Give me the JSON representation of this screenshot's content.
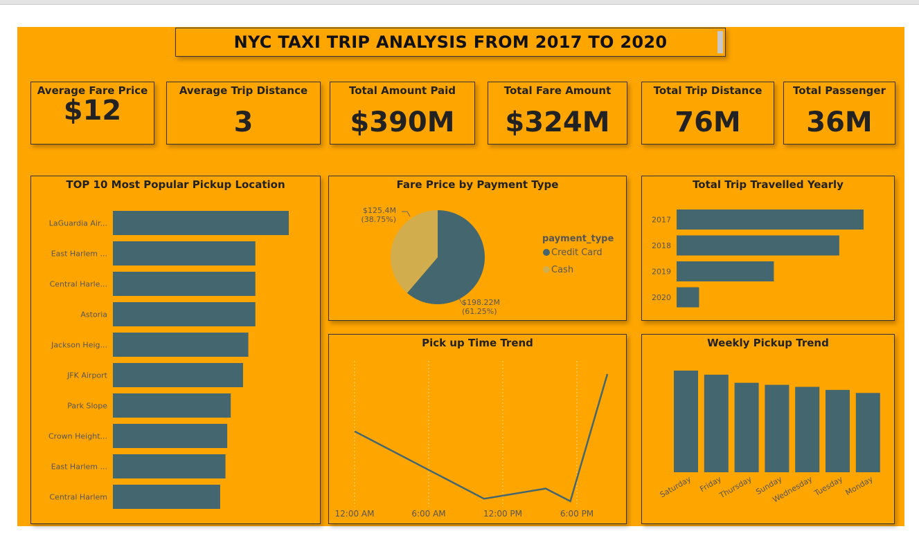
{
  "dashboard": {
    "title": "NYC TAXI TRIP ANALYSIS FROM 2017 TO 2020"
  },
  "kpis": [
    {
      "label": "Average Fare Price",
      "value": "$12"
    },
    {
      "label": "Average Trip Distance",
      "value": "3"
    },
    {
      "label": "Total Amount Paid",
      "value": "$390M"
    },
    {
      "label": "Total Fare Amount",
      "value": "$324M"
    },
    {
      "label": "Total Trip Distance",
      "value": "76M"
    },
    {
      "label": "Total Passenger",
      "value": "36M"
    }
  ],
  "colors": {
    "background": "#fea500",
    "bar": "#44676f",
    "cash": "#d2ad4e",
    "text": "#222222"
  },
  "chart_data": [
    {
      "id": "pickup",
      "type": "bar",
      "orientation": "horizontal",
      "title": "TOP 10 Most Popular Pickup Location",
      "categories": [
        "LaGuardia Air...",
        "East Harlem ...",
        "Central Harle...",
        "Astoria",
        "Jackson Heig...",
        "JFK Airport",
        "Park Slope",
        "Crown Height...",
        "East Harlem ...",
        "Central Harlem"
      ],
      "values": [
        1.0,
        0.81,
        0.81,
        0.81,
        0.77,
        0.74,
        0.67,
        0.65,
        0.64,
        0.61
      ]
    },
    {
      "id": "payment",
      "type": "pie",
      "title": "Fare Price by Payment Type",
      "legend_title": "payment_type",
      "slices": [
        {
          "name": "Credit Card",
          "value": 198.22,
          "label": "$198.22M",
          "pct": "(61.25%)",
          "color": "#44676f"
        },
        {
          "name": "Cash",
          "value": 125.4,
          "label": "$125.4M",
          "pct": "(38.75%)",
          "color": "#d2ad4e"
        }
      ]
    },
    {
      "id": "yearly",
      "type": "bar",
      "orientation": "horizontal",
      "title": "Total Trip Travelled Yearly",
      "categories": [
        "2017",
        "2018",
        "2019",
        "2020"
      ],
      "values": [
        1.0,
        0.87,
        0.52,
        0.12
      ]
    },
    {
      "id": "time",
      "type": "line",
      "title": "Pick up Time Trend",
      "x_ticks": [
        "12:00 AM",
        "6:00 AM",
        "12:00 PM",
        "6:00 PM"
      ],
      "x": [
        0,
        10.5,
        15.5,
        17.5,
        20.5
      ],
      "values": [
        0.55,
        0.02,
        0.1,
        0.0,
        1.0
      ]
    },
    {
      "id": "weekly",
      "type": "bar",
      "orientation": "vertical",
      "title": "Weekly Pickup Trend",
      "categories": [
        "Saturday",
        "Friday",
        "Thursday",
        "Sunday",
        "Wednesday",
        "Tuesday",
        "Monday"
      ],
      "values": [
        1.0,
        0.96,
        0.88,
        0.86,
        0.84,
        0.81,
        0.78
      ]
    }
  ]
}
